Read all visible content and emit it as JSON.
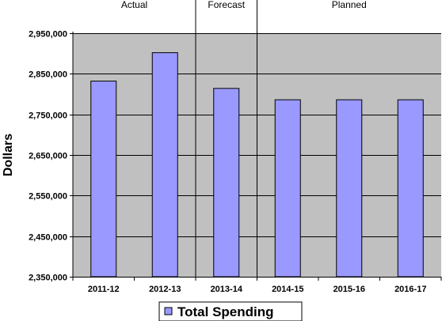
{
  "chart_data": {
    "type": "bar",
    "categories": [
      "2011-12",
      "2012-13",
      "2013-14",
      "2014-15",
      "2015-16",
      "2016-17"
    ],
    "series": [
      {
        "name": "Total Spending",
        "values": [
          2832000,
          2902000,
          2814000,
          2786000,
          2786000,
          2786000
        ]
      }
    ],
    "periods": [
      {
        "label": "Actual",
        "from": 0,
        "to": 1
      },
      {
        "label": "Forecast",
        "from": 2,
        "to": 2
      },
      {
        "label": "Planned",
        "from": 3,
        "to": 5
      }
    ],
    "ylabel": "Dollars",
    "ylim": [
      2350000,
      2950000
    ],
    "yticks": [
      2350000,
      2450000,
      2550000,
      2650000,
      2750000,
      2850000,
      2950000
    ],
    "ytick_labels": [
      "2,350,000",
      "2,450,000",
      "2,550,000",
      "2,650,000",
      "2,750,000",
      "2,850,000",
      "2,950,000"
    ],
    "grid": "horizontal",
    "legend_position": "bottom-center",
    "colors": {
      "bar": "#9999ff",
      "bar_edge": "#000000",
      "plot_bg": "#c0c0c0"
    }
  }
}
